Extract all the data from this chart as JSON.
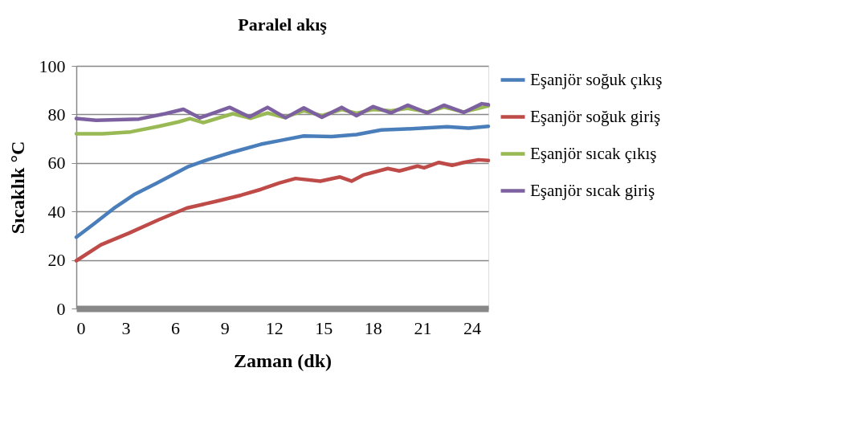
{
  "chart_data": {
    "type": "line",
    "title": "Paralel akış",
    "xlabel": "Zaman (dk)",
    "ylabel": "Sıcaklık °C",
    "xlim": [
      0,
      25
    ],
    "xticks": [
      0,
      3,
      6,
      9,
      12,
      15,
      18,
      21,
      24
    ],
    "ylim": [
      0,
      100
    ],
    "yticks": [
      0,
      20,
      40,
      60,
      80,
      100
    ],
    "grid": "y",
    "legend": "right",
    "marker": "none",
    "line_style": "solid",
    "series": [
      {
        "name": "Eşanjör soğuk çıkış",
        "color": "#4a7ebb",
        "x": [
          0,
          1,
          2.3,
          3.5,
          4.9,
          6.8,
          8.0,
          9.5,
          11.2,
          12.5,
          13.8,
          15.5,
          17.0,
          18.5,
          20,
          22.5,
          23.8,
          25
        ],
        "values": [
          29.4,
          34.5,
          41.4,
          46.9,
          51.7,
          58.5,
          61.4,
          64.5,
          67.7,
          69.4,
          71.1,
          70.9,
          71.7,
          73.6,
          74,
          74.9,
          74.3,
          75.1
        ]
      },
      {
        "name": "Eşanjör soğuk giriş",
        "color": "#be4b48",
        "x": [
          0,
          1.5,
          3.2,
          5.0,
          6.7,
          8.5,
          10,
          11.2,
          12.3,
          13.3,
          14.8,
          16,
          16.7,
          17.4,
          18.9,
          19.6,
          20.7,
          21.1,
          22,
          22.8,
          23.5,
          24.4,
          25
        ],
        "values": [
          19.7,
          26.3,
          31.1,
          36.6,
          41.4,
          44.2,
          46.7,
          49.1,
          51.7,
          53.6,
          52.5,
          54.2,
          52.5,
          55,
          57.7,
          56.7,
          58.7,
          58,
          60.2,
          59,
          60.2,
          61.3,
          61
        ]
      },
      {
        "name": "Eşanjör sıcak çıkış",
        "color": "#98b954",
        "x": [
          0,
          1.6,
          3.3,
          5,
          6.2,
          6.9,
          7.7,
          9.5,
          10.6,
          11.6,
          12.6,
          13.8,
          14.9,
          16.1,
          17.0,
          18,
          19.1,
          20.1,
          21.3,
          22.3,
          23.5,
          25
        ],
        "values": [
          72,
          72,
          72.8,
          75.1,
          76.9,
          78.3,
          76.6,
          80.3,
          78.4,
          80.6,
          78.8,
          81.5,
          79.5,
          82,
          80.5,
          82,
          81.5,
          82.5,
          81,
          83,
          81,
          83.5
        ]
      },
      {
        "name": "Eşanjör sıcak giriş",
        "color": "#7d60a0",
        "x": [
          0,
          1.2,
          3.8,
          5.4,
          6.5,
          7.5,
          9.3,
          10.5,
          11.6,
          12.7,
          13.8,
          14.9,
          16.1,
          17.0,
          18.0,
          19.1,
          20.1,
          21.3,
          22.3,
          23.5,
          24.6,
          25
        ],
        "values": [
          78.3,
          77.6,
          78.1,
          80.3,
          82.1,
          78.6,
          82.9,
          79,
          82.9,
          78.6,
          82.7,
          78.8,
          82.9,
          79.5,
          83.2,
          80.6,
          83.8,
          80.6,
          83.8,
          80.8,
          84.4,
          84
        ]
      }
    ]
  }
}
